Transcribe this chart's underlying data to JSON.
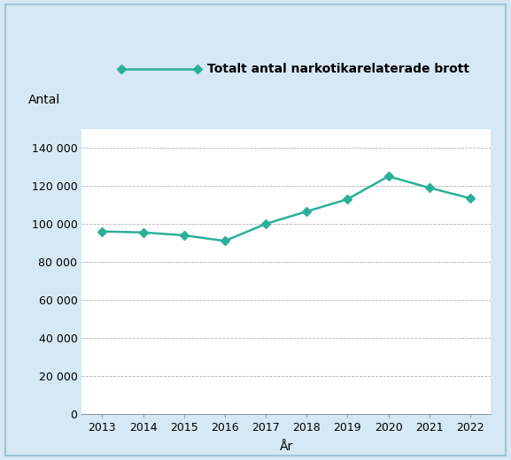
{
  "years": [
    2013,
    2014,
    2015,
    2016,
    2017,
    2018,
    2019,
    2020,
    2021,
    2022
  ],
  "values": [
    96000,
    95500,
    94000,
    91000,
    100000,
    106500,
    113000,
    125000,
    119000,
    113475
  ],
  "line_color": "#2ab09a",
  "marker_style": "D",
  "marker_size": 5,
  "title": "Totalt antal narkotikarelaterade brott",
  "ylabel": "Antal",
  "xlabel": "År",
  "ylim": [
    0,
    150000
  ],
  "yticks": [
    0,
    20000,
    40000,
    60000,
    80000,
    100000,
    120000,
    140000
  ],
  "ytick_labels": [
    "0",
    "20 000",
    "40 000",
    "60 000",
    "80 000",
    "100 000",
    "120 000",
    "140 000"
  ],
  "background_color": "#d6e8f3",
  "plot_bg_color": "#ffffff",
  "legend_bg_color": "#ffffff",
  "grid_color": "#b0b0b0",
  "title_fontsize": 10,
  "axis_label_fontsize": 10,
  "tick_fontsize": 9,
  "legend_fontsize": 10
}
